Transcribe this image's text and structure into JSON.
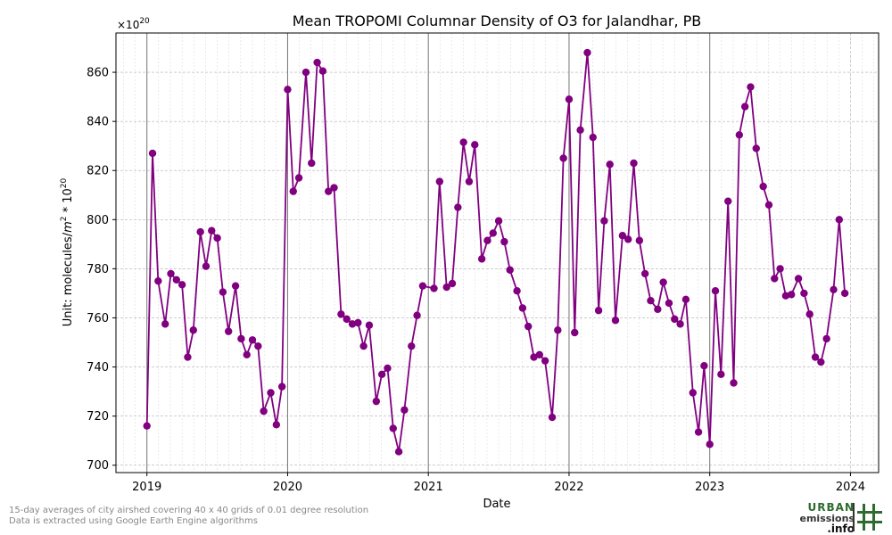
{
  "chart_data": {
    "type": "line",
    "title": "Mean TROPOMI Columnar Density of O3 for Jalandhar, PB",
    "xlabel": "Date",
    "ylabel_prefix": "Unit: molecules/",
    "ylabel_m": "m",
    "ylabel_m_sup": "2",
    "ylabel_mid": " * 10",
    "ylabel_pow_sup": "20",
    "offset_text": "×10",
    "offset_sup": "20",
    "xlim": [
      2018.78,
      2024.2
    ],
    "ylim": [
      697,
      876
    ],
    "x_ticks": [
      2019,
      2020,
      2021,
      2022,
      2023,
      2024
    ],
    "x_tick_labels": [
      "2019",
      "2020",
      "2021",
      "2022",
      "2023",
      "2024"
    ],
    "y_ticks": [
      700,
      720,
      740,
      760,
      780,
      800,
      820,
      840,
      860
    ],
    "y_tick_labels": [
      "700",
      "720",
      "740",
      "760",
      "780",
      "800",
      "820",
      "840",
      "860"
    ],
    "grid": true,
    "vertical_lines_at": [
      2019,
      2020,
      2021,
      2022,
      2023
    ],
    "series": [
      {
        "color": "#800080",
        "points": [
          [
            2019.0,
            716
          ],
          [
            2019.04,
            827
          ],
          [
            2019.08,
            775
          ],
          [
            2019.13,
            757.5
          ],
          [
            2019.17,
            778
          ],
          [
            2019.21,
            775.5
          ],
          [
            2019.25,
            773.5
          ],
          [
            2019.29,
            744
          ],
          [
            2019.33,
            755
          ],
          [
            2019.38,
            795
          ],
          [
            2019.42,
            781
          ],
          [
            2019.46,
            795.5
          ],
          [
            2019.5,
            792.5
          ],
          [
            2019.54,
            770.5
          ],
          [
            2019.58,
            754.5
          ],
          [
            2019.63,
            773
          ],
          [
            2019.67,
            751.5
          ],
          [
            2019.71,
            745
          ],
          [
            2019.75,
            751
          ],
          [
            2019.79,
            748.5
          ],
          [
            2019.83,
            722
          ],
          [
            2019.88,
            729.5
          ],
          [
            2019.92,
            716.5
          ],
          [
            2019.96,
            732
          ],
          [
            2020.0,
            853
          ],
          [
            2020.04,
            811.5
          ],
          [
            2020.08,
            817
          ],
          [
            2020.13,
            860
          ],
          [
            2020.17,
            823
          ],
          [
            2020.21,
            864
          ],
          [
            2020.25,
            860.5
          ],
          [
            2020.29,
            811.5
          ],
          [
            2020.33,
            813
          ],
          [
            2020.38,
            761.5
          ],
          [
            2020.42,
            759.5
          ],
          [
            2020.46,
            757.5
          ],
          [
            2020.5,
            758
          ],
          [
            2020.54,
            748.5
          ],
          [
            2020.58,
            757
          ],
          [
            2020.63,
            726
          ],
          [
            2020.67,
            737
          ],
          [
            2020.71,
            739.5
          ],
          [
            2020.75,
            715
          ],
          [
            2020.79,
            705.5
          ],
          [
            2020.83,
            722.5
          ],
          [
            2020.88,
            748.5
          ],
          [
            2020.92,
            761
          ],
          [
            2020.96,
            773
          ],
          [
            2021.04,
            772
          ],
          [
            2021.08,
            815.5
          ],
          [
            2021.13,
            772.5
          ],
          [
            2021.17,
            774
          ],
          [
            2021.21,
            805
          ],
          [
            2021.25,
            831.5
          ],
          [
            2021.29,
            815.5
          ],
          [
            2021.33,
            830.5
          ],
          [
            2021.38,
            784
          ],
          [
            2021.42,
            791.5
          ],
          [
            2021.46,
            794.5
          ],
          [
            2021.5,
            799.5
          ],
          [
            2021.54,
            791
          ],
          [
            2021.58,
            779.5
          ],
          [
            2021.63,
            771
          ],
          [
            2021.67,
            764
          ],
          [
            2021.71,
            756.5
          ],
          [
            2021.75,
            744
          ],
          [
            2021.79,
            745
          ],
          [
            2021.83,
            742.5
          ],
          [
            2021.88,
            719.5
          ],
          [
            2021.92,
            755
          ],
          [
            2021.96,
            825
          ],
          [
            2022.0,
            849
          ],
          [
            2022.04,
            754
          ],
          [
            2022.08,
            836.5
          ],
          [
            2022.13,
            868
          ],
          [
            2022.17,
            833.5
          ],
          [
            2022.21,
            763
          ],
          [
            2022.25,
            799.5
          ],
          [
            2022.29,
            822.5
          ],
          [
            2022.33,
            759
          ],
          [
            2022.38,
            793.5
          ],
          [
            2022.42,
            792
          ],
          [
            2022.46,
            823
          ],
          [
            2022.5,
            791.5
          ],
          [
            2022.54,
            778
          ],
          [
            2022.58,
            767
          ],
          [
            2022.63,
            763.5
          ],
          [
            2022.67,
            774.5
          ],
          [
            2022.71,
            766
          ],
          [
            2022.75,
            759.5
          ],
          [
            2022.79,
            757.5
          ],
          [
            2022.83,
            767.5
          ],
          [
            2022.88,
            729.5
          ],
          [
            2022.92,
            713.5
          ],
          [
            2022.96,
            740.5
          ],
          [
            2023.0,
            708.5
          ],
          [
            2023.04,
            771
          ],
          [
            2023.08,
            737
          ],
          [
            2023.13,
            807.5
          ],
          [
            2023.17,
            733.5
          ],
          [
            2023.21,
            834.5
          ],
          [
            2023.25,
            846
          ],
          [
            2023.29,
            854
          ],
          [
            2023.33,
            829
          ],
          [
            2023.38,
            813.5
          ],
          [
            2023.42,
            806
          ],
          [
            2023.46,
            776
          ],
          [
            2023.5,
            780
          ],
          [
            2023.54,
            769
          ],
          [
            2023.58,
            769.5
          ],
          [
            2023.63,
            776
          ],
          [
            2023.67,
            770
          ],
          [
            2023.71,
            761.5
          ],
          [
            2023.75,
            744
          ],
          [
            2023.79,
            742
          ],
          [
            2023.83,
            751.5
          ],
          [
            2023.88,
            771.5
          ],
          [
            2023.92,
            800
          ],
          [
            2023.96,
            770
          ]
        ]
      }
    ]
  },
  "footnote": {
    "line1": "15-day averages of city airshed covering 40 x 40 grids of 0.01 degree resolution",
    "line2": "Data is extracted using Google Earth Engine algorithms"
  },
  "logo": {
    "word1": "URBAN",
    "word2": "emissions",
    "word3": ".info",
    "accent_color": "#2e6b2e"
  }
}
